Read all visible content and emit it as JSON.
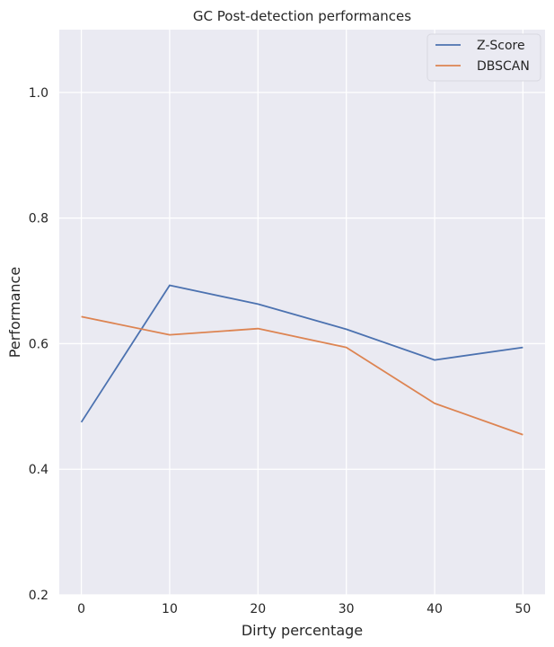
{
  "chart_data": {
    "type": "line",
    "title": "GC Post-detection performances",
    "xlabel": "Dirty percentage",
    "ylabel": "Performance",
    "x": [
      0,
      10,
      20,
      30,
      40,
      50
    ],
    "xticks": [
      0,
      10,
      20,
      30,
      40,
      50
    ],
    "yticks": [
      0.2,
      0.4,
      0.6,
      0.8,
      1.0
    ],
    "ytick_labels": [
      "0.2",
      "0.4",
      "0.6",
      "0.8",
      "1.0"
    ],
    "xlim": [
      -2.5,
      52.5
    ],
    "ylim": [
      0.2,
      1.1
    ],
    "grid": true,
    "legend_position": "top-right",
    "background": "#eaeaf2",
    "series": [
      {
        "name": "Z-Score",
        "color": "#4c72b0",
        "values": [
          0.475,
          0.693,
          0.663,
          0.623,
          0.574,
          0.594
        ]
      },
      {
        "name": "DBSCAN",
        "color": "#dd8452",
        "values": [
          0.643,
          0.614,
          0.624,
          0.594,
          0.505,
          0.455
        ]
      }
    ]
  }
}
